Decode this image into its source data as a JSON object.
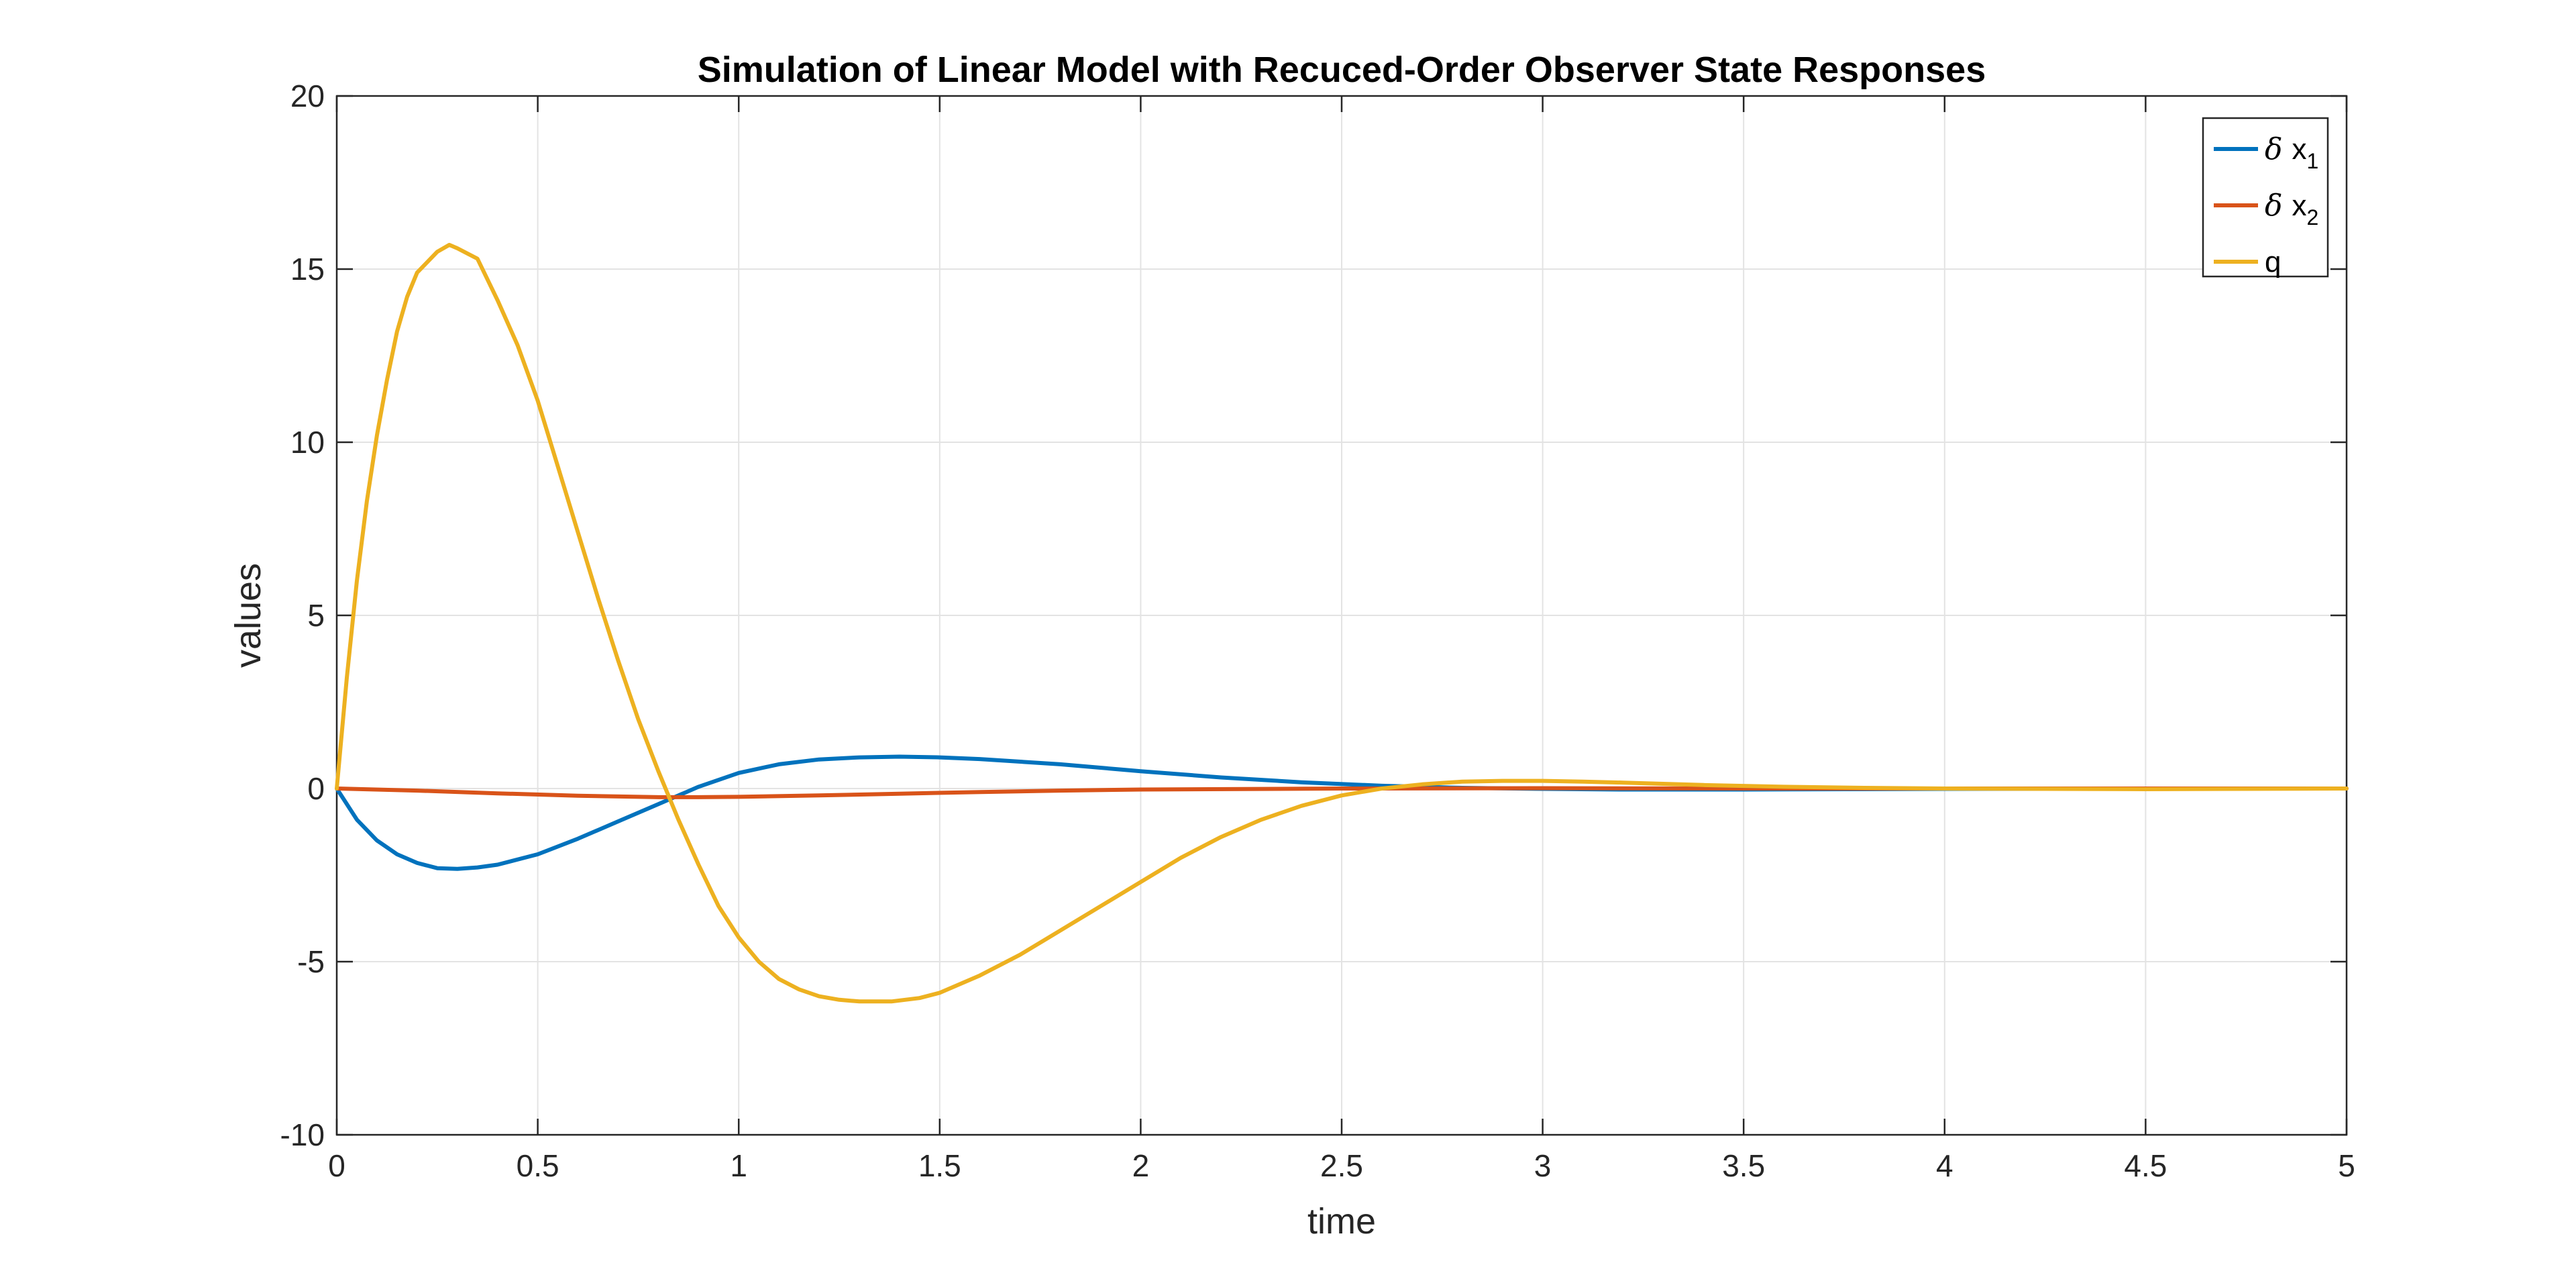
{
  "chart_data": {
    "type": "line",
    "title": "Simulation of Linear Model with Recuced-Order Observer State Responses",
    "xlabel": "time",
    "ylabel": "values",
    "xlim": [
      0,
      5
    ],
    "ylim": [
      -10,
      20
    ],
    "xticks": [
      "0",
      "0.5",
      "1",
      "1.5",
      "2",
      "2.5",
      "3",
      "3.5",
      "4",
      "4.5",
      "5"
    ],
    "yticks": [
      "-10",
      "-5",
      "0",
      "5",
      "10",
      "15",
      "20"
    ],
    "grid": true,
    "legend_position": "top-right",
    "legend": [
      {
        "symbol": "δ",
        "name": "x",
        "sub": "1"
      },
      {
        "symbol": "δ",
        "name": "x",
        "sub": "2"
      },
      {
        "symbol": "",
        "name": "q",
        "sub": ""
      }
    ],
    "series": [
      {
        "name": "δ x1",
        "color": "#0072BD",
        "x": [
          0,
          0.05,
          0.1,
          0.15,
          0.2,
          0.25,
          0.3,
          0.35,
          0.4,
          0.5,
          0.6,
          0.7,
          0.8,
          0.87,
          0.9,
          1.0,
          1.1,
          1.2,
          1.3,
          1.4,
          1.5,
          1.6,
          1.8,
          2.0,
          2.2,
          2.4,
          2.6,
          2.8,
          3.0,
          3.2,
          3.5,
          4.0,
          4.5,
          5.0
        ],
        "y": [
          0,
          -0.9,
          -1.5,
          -1.9,
          -2.15,
          -2.3,
          -2.32,
          -2.28,
          -2.2,
          -1.9,
          -1.45,
          -0.95,
          -0.45,
          -0.1,
          0.05,
          0.45,
          0.7,
          0.84,
          0.9,
          0.92,
          0.9,
          0.85,
          0.7,
          0.5,
          0.32,
          0.18,
          0.08,
          0.02,
          -0.01,
          -0.03,
          -0.03,
          -0.01,
          0.0,
          0.0
        ]
      },
      {
        "name": "δ x2",
        "color": "#D95319",
        "x": [
          0,
          0.2,
          0.4,
          0.6,
          0.8,
          0.9,
          1.0,
          1.2,
          1.4,
          1.6,
          1.8,
          2.0,
          2.5,
          3.0,
          3.5,
          4.0,
          4.5,
          5.0
        ],
        "y": [
          0,
          -0.06,
          -0.14,
          -0.21,
          -0.25,
          -0.25,
          -0.24,
          -0.2,
          -0.15,
          -0.1,
          -0.06,
          -0.03,
          0.0,
          0.01,
          0.0,
          0.0,
          0.0,
          0.0
        ]
      },
      {
        "name": "q",
        "color": "#EDB120",
        "x": [
          0,
          0.025,
          0.05,
          0.075,
          0.1,
          0.125,
          0.15,
          0.175,
          0.2,
          0.25,
          0.28,
          0.3,
          0.35,
          0.4,
          0.45,
          0.5,
          0.55,
          0.6,
          0.65,
          0.7,
          0.75,
          0.8,
          0.85,
          0.9,
          0.95,
          1.0,
          1.05,
          1.1,
          1.15,
          1.2,
          1.25,
          1.3,
          1.35,
          1.38,
          1.45,
          1.5,
          1.6,
          1.7,
          1.8,
          1.9,
          2.0,
          2.1,
          2.2,
          2.3,
          2.4,
          2.5,
          2.6,
          2.7,
          2.8,
          2.9,
          3.0,
          3.1,
          3.2,
          3.4,
          3.6,
          3.8,
          4.0,
          4.5,
          5.0
        ],
        "y": [
          0,
          3.2,
          6.0,
          8.3,
          10.2,
          11.8,
          13.2,
          14.2,
          14.9,
          15.5,
          15.7,
          15.6,
          15.3,
          14.1,
          12.8,
          11.2,
          9.3,
          7.4,
          5.5,
          3.7,
          2.0,
          0.5,
          -0.9,
          -2.2,
          -3.4,
          -4.3,
          -5.0,
          -5.5,
          -5.8,
          -6.0,
          -6.1,
          -6.15,
          -6.15,
          -6.15,
          -6.05,
          -5.9,
          -5.4,
          -4.8,
          -4.1,
          -3.4,
          -2.7,
          -2.0,
          -1.4,
          -0.9,
          -0.5,
          -0.2,
          0.0,
          0.12,
          0.2,
          0.22,
          0.22,
          0.2,
          0.17,
          0.1,
          0.05,
          0.02,
          0.0,
          -0.02,
          0.0
        ]
      }
    ]
  }
}
